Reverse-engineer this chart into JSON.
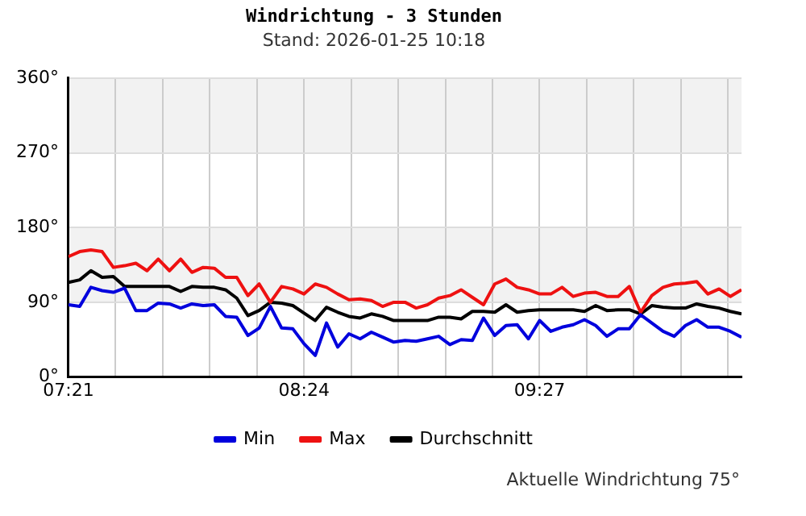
{
  "chart_data": {
    "type": "line",
    "title": "Windrichtung - 3 Stunden",
    "subtitle": "Stand: 2026-01-25 10:18",
    "annotations": [
      "Aktuelle Windrichtung 75°"
    ],
    "x": [
      7.35,
      7.4,
      7.45,
      7.5,
      7.55,
      7.6,
      7.65,
      7.7,
      7.75,
      7.8,
      7.85,
      7.9,
      7.95,
      8,
      8.05,
      8.1,
      8.15,
      8.2,
      8.25,
      8.3,
      8.35,
      8.4,
      8.45,
      8.5,
      8.55,
      8.6,
      8.65,
      8.7,
      8.75,
      8.8,
      8.85,
      8.9,
      8.95,
      9,
      9.05,
      9.1,
      9.15,
      9.2,
      9.25,
      9.3,
      9.35,
      9.4,
      9.45,
      9.5,
      9.55,
      9.6,
      9.65,
      9.7,
      9.75,
      9.8,
      9.85,
      9.9,
      9.95,
      10,
      10.05,
      10.1,
      10.15,
      10.2,
      10.25,
      10.3,
      10.35
    ],
    "series": [
      {
        "name": "Min",
        "color": "#0000dd",
        "values": [
          87,
          85,
          108,
          104,
          102,
          107,
          80,
          80,
          89,
          88,
          83,
          88,
          86,
          87,
          73,
          72,
          50,
          59,
          85,
          59,
          58,
          40,
          26,
          65,
          36,
          52,
          46,
          54,
          48,
          42,
          44,
          43,
          46,
          49,
          39,
          45,
          44,
          71,
          50,
          62,
          63,
          46,
          68,
          55,
          60,
          63,
          69,
          62,
          49,
          58,
          58,
          75,
          65,
          55,
          49,
          62,
          69,
          60,
          60,
          55,
          48
        ]
      },
      {
        "name": "Max",
        "color": "#ee1111",
        "values": [
          145,
          151,
          153,
          151,
          132,
          134,
          137,
          128,
          142,
          128,
          142,
          126,
          132,
          131,
          120,
          120,
          98,
          112,
          90,
          109,
          106,
          100,
          112,
          108,
          100,
          93,
          94,
          92,
          85,
          90,
          90,
          83,
          87,
          95,
          98,
          105,
          96,
          87,
          112,
          118,
          108,
          105,
          100,
          100,
          108,
          97,
          101,
          102,
          97,
          97,
          109,
          78,
          98,
          108,
          112,
          113,
          115,
          100,
          106,
          97,
          105
        ]
      },
      {
        "name": "Durchschnitt",
        "color": "#000000",
        "values": [
          114,
          117,
          128,
          120,
          121,
          109,
          109,
          109,
          109,
          109,
          103,
          109,
          108,
          108,
          105,
          95,
          74,
          80,
          90,
          89,
          86,
          77,
          68,
          84,
          78,
          73,
          71,
          76,
          73,
          68,
          68,
          68,
          68,
          72,
          72,
          70,
          79,
          79,
          78,
          87,
          78,
          80,
          81,
          81,
          81,
          81,
          79,
          86,
          80,
          81,
          81,
          76,
          86,
          84,
          83,
          83,
          88,
          85,
          83,
          79,
          76
        ]
      }
    ],
    "xlim": [
      7.35,
      10.35
    ],
    "xticks": [
      {
        "value": 7.35,
        "label": "07:21"
      },
      {
        "value": 7.56,
        "label": null
      },
      {
        "value": 7.77,
        "label": null
      },
      {
        "value": 7.98,
        "label": null
      },
      {
        "value": 8.19,
        "label": null
      },
      {
        "value": 8.4,
        "label": "08:24"
      },
      {
        "value": 8.61,
        "label": null
      },
      {
        "value": 8.82,
        "label": null
      },
      {
        "value": 9.03,
        "label": null
      },
      {
        "value": 9.24,
        "label": null
      },
      {
        "value": 9.45,
        "label": "09:27"
      },
      {
        "value": 9.66,
        "label": null
      },
      {
        "value": 9.87,
        "label": null
      },
      {
        "value": 10.08,
        "label": null
      },
      {
        "value": 10.29,
        "label": null
      }
    ],
    "ylim": [
      0,
      360
    ],
    "yticks": [
      {
        "value": 0,
        "label": "0°"
      },
      {
        "value": 90,
        "label": "90°"
      },
      {
        "value": 180,
        "label": "180°"
      },
      {
        "value": 270,
        "label": "270°"
      },
      {
        "value": 360,
        "label": "360°"
      }
    ],
    "bands": [
      {
        "axis": "y",
        "from": 90,
        "to": 180,
        "color": "#f2f2f2"
      },
      {
        "axis": "y",
        "from": 270,
        "to": 360,
        "color": "#f2f2f2"
      }
    ],
    "grid": true,
    "legend": "bottom",
    "marker": "none",
    "line_style": "solid"
  }
}
